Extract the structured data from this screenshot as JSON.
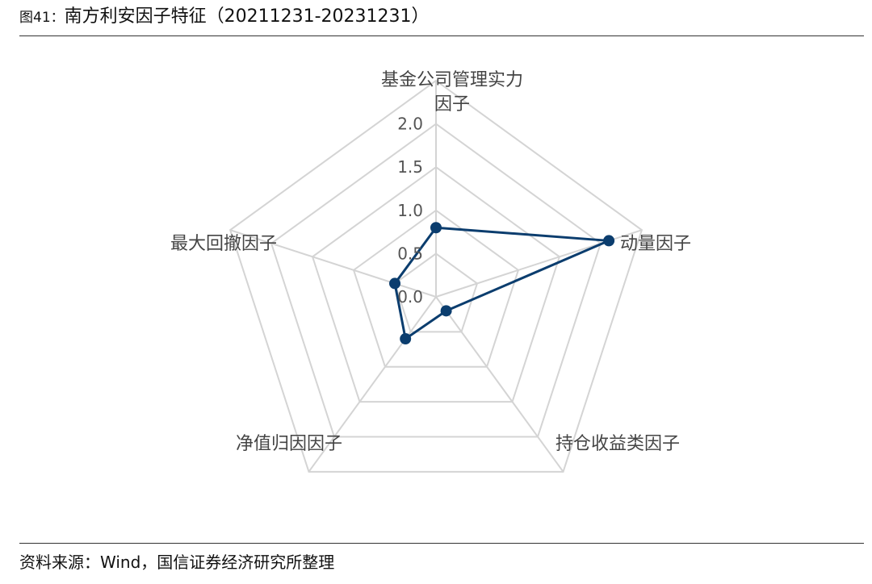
{
  "header": {
    "figure_label": "图41：",
    "title": "南方利安因子特征（20211231-20231231）"
  },
  "footer": {
    "source": "资料来源：Wind，国信证券经济研究所整理"
  },
  "colors": {
    "series": "#0b3d6e",
    "grid": "#d4d4d4"
  },
  "chart_data": {
    "type": "radar",
    "axes": [
      [
        "基金公司管理实力",
        "因子"
      ],
      [
        "动量因子"
      ],
      [
        "持仓收益类因子"
      ],
      [
        "净值归因因子"
      ],
      [
        "最大回撤因子"
      ]
    ],
    "ticks": [
      "0.0",
      "0.5",
      "1.0",
      "1.5",
      "2.0"
    ],
    "range": [
      0,
      2.5
    ],
    "grid": true,
    "series": [
      {
        "values": [
          0.8,
          2.1,
          0.2,
          0.6,
          0.5
        ]
      }
    ]
  }
}
